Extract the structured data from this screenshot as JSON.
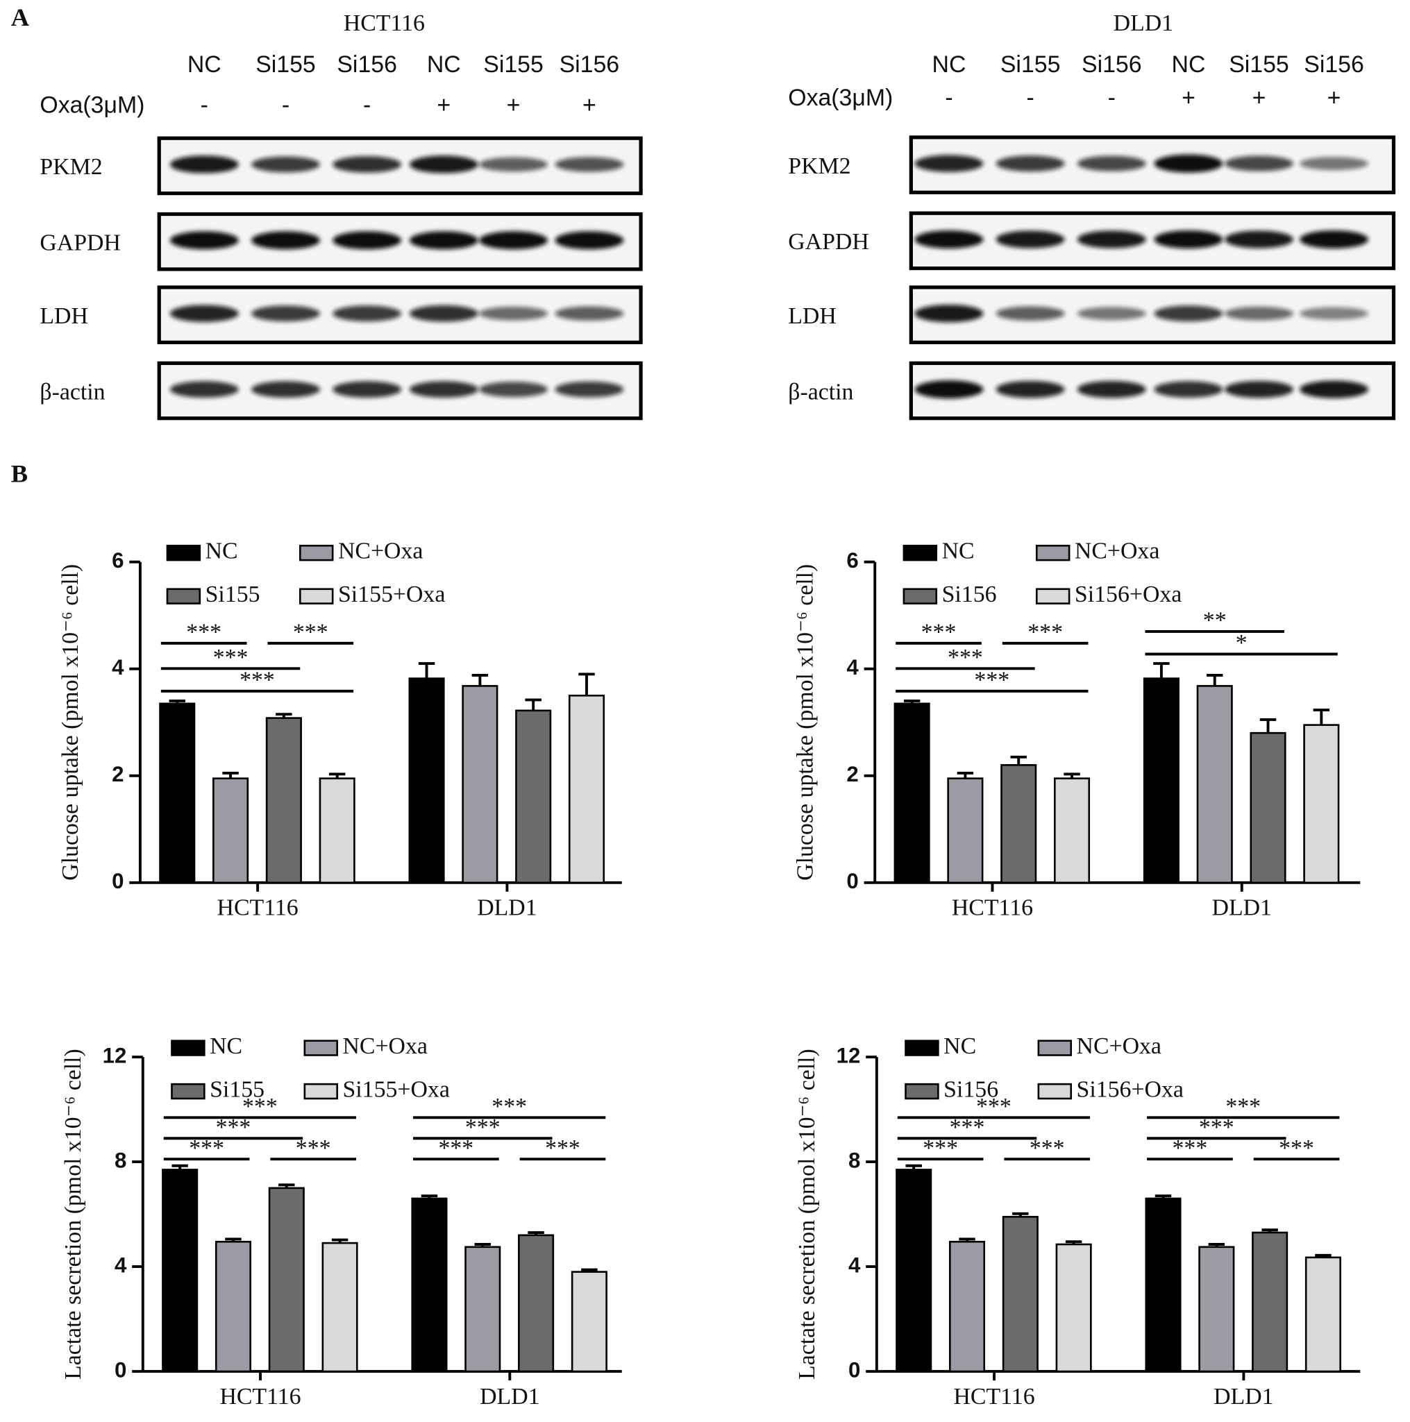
{
  "panel_labels": [
    "A",
    "B"
  ],
  "blots": [
    {
      "title": "HCT116",
      "lanes": [
        "NC",
        "Si155",
        "Si156",
        "NC",
        "Si155",
        "Si156"
      ],
      "treatment_label": "Oxa(3μM)",
      "treatment": [
        "-",
        "-",
        "-",
        "+",
        "+",
        "+"
      ],
      "rows": [
        "PKM2",
        "GAPDH",
        "LDH",
        "β-actin"
      ]
    },
    {
      "title": "DLD1",
      "lanes": [
        "NC",
        "Si155",
        "Si156",
        "NC",
        "Si155",
        "Si156"
      ],
      "treatment_label": "Oxa(3μM)",
      "treatment": [
        "-",
        "-",
        "-",
        "+",
        "+",
        "+"
      ],
      "rows": [
        "PKM2",
        "GAPDH",
        "LDH",
        "β-actin"
      ]
    }
  ],
  "chart_data": [
    {
      "type": "bar",
      "y_label": "Glucose uptake (pmol x10⁻⁶ cell)",
      "categories": [
        "HCT116",
        "DLD1"
      ],
      "series": [
        {
          "name": "NC",
          "color": "#000000",
          "values": [
            3.35,
            3.82
          ],
          "errors": [
            0.05,
            0.28
          ]
        },
        {
          "name": "NC+Oxa",
          "color": "#9b9ba3",
          "values": [
            1.95,
            3.68
          ],
          "errors": [
            0.1,
            0.2
          ]
        },
        {
          "name": "Si155",
          "color": "#6b6b6b",
          "values": [
            3.08,
            3.22
          ],
          "errors": [
            0.07,
            0.2
          ]
        },
        {
          "name": "Si155+Oxa",
          "color": "#d9d9d9",
          "values": [
            1.95,
            3.5
          ],
          "errors": [
            0.08,
            0.4
          ]
        }
      ],
      "ylim": [
        0,
        6
      ],
      "yticks": [
        0,
        2,
        4,
        6
      ],
      "annotations": [
        "***",
        "***",
        "***",
        "***"
      ]
    },
    {
      "type": "bar",
      "y_label": "Glucose uptake (pmol x10⁻⁶ cell)",
      "categories": [
        "HCT116",
        "DLD1"
      ],
      "series": [
        {
          "name": "NC",
          "color": "#000000",
          "values": [
            3.35,
            3.82
          ],
          "errors": [
            0.05,
            0.28
          ]
        },
        {
          "name": "NC+Oxa",
          "color": "#9b9ba3",
          "values": [
            1.95,
            3.68
          ],
          "errors": [
            0.1,
            0.2
          ]
        },
        {
          "name": "Si156",
          "color": "#6b6b6b",
          "values": [
            2.2,
            2.8
          ],
          "errors": [
            0.15,
            0.25
          ]
        },
        {
          "name": "Si156+Oxa",
          "color": "#d9d9d9",
          "values": [
            1.95,
            2.95
          ],
          "errors": [
            0.08,
            0.28
          ]
        }
      ],
      "ylim": [
        0,
        6
      ],
      "yticks": [
        0,
        2,
        4,
        6
      ],
      "annotations": [
        "***",
        "***",
        "***",
        "***",
        "**",
        "*"
      ]
    },
    {
      "type": "bar",
      "y_label": "Lactate secretion (pmol x10⁻⁶ cell)",
      "categories": [
        "HCT116",
        "DLD1"
      ],
      "series": [
        {
          "name": "NC",
          "color": "#000000",
          "values": [
            7.7,
            6.6
          ],
          "errors": [
            0.15,
            0.1
          ]
        },
        {
          "name": "NC+Oxa",
          "color": "#9b9ba3",
          "values": [
            4.95,
            4.75
          ],
          "errors": [
            0.1,
            0.1
          ]
        },
        {
          "name": "Si155",
          "color": "#6b6b6b",
          "values": [
            7.0,
            5.2
          ],
          "errors": [
            0.12,
            0.1
          ]
        },
        {
          "name": "Si155+Oxa",
          "color": "#d9d9d9",
          "values": [
            4.9,
            3.8
          ],
          "errors": [
            0.12,
            0.08
          ]
        }
      ],
      "ylim": [
        0,
        12
      ],
      "yticks": [
        0,
        4,
        8,
        12
      ],
      "annotations": [
        "***",
        "***",
        "***",
        "***",
        "***",
        "***",
        "***",
        "***"
      ]
    },
    {
      "type": "bar",
      "y_label": "Lactate secretion (pmol x10⁻⁶ cell)",
      "categories": [
        "HCT116",
        "DLD1"
      ],
      "series": [
        {
          "name": "NC",
          "color": "#000000",
          "values": [
            7.7,
            6.6
          ],
          "errors": [
            0.15,
            0.1
          ]
        },
        {
          "name": "NC+Oxa",
          "color": "#9b9ba3",
          "values": [
            4.95,
            4.75
          ],
          "errors": [
            0.1,
            0.1
          ]
        },
        {
          "name": "Si156",
          "color": "#6b6b6b",
          "values": [
            5.9,
            5.3
          ],
          "errors": [
            0.12,
            0.1
          ]
        },
        {
          "name": "Si156+Oxa",
          "color": "#d9d9d9",
          "values": [
            4.85,
            4.35
          ],
          "errors": [
            0.1,
            0.08
          ]
        }
      ],
      "ylim": [
        0,
        12
      ],
      "yticks": [
        0,
        4,
        8,
        12
      ],
      "annotations": [
        "***",
        "***",
        "***",
        "***",
        "***",
        "***",
        "***",
        "***"
      ]
    }
  ]
}
